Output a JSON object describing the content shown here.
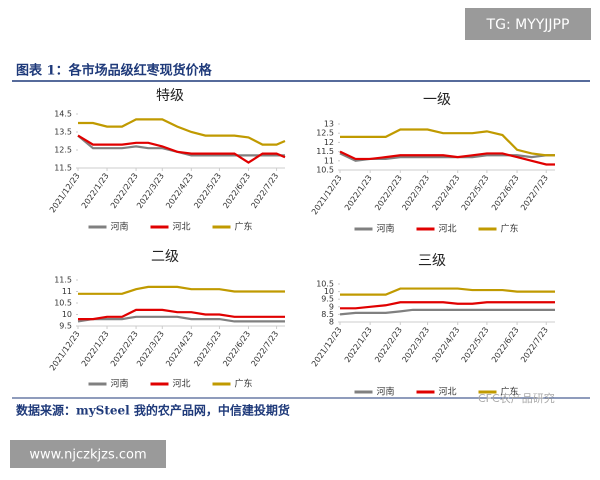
{
  "header": {
    "tag": "TG: MYYJJPP",
    "figure_title": "图表 1：各市场品级红枣现货价格"
  },
  "footer": {
    "source": "数据来源：mySteel 我的农产品网，中信建投期货",
    "watermark": "CFC农产品研究",
    "site": "www.njczkjzs.com"
  },
  "chart_data": [
    {
      "type": "line",
      "title": "特级",
      "x": [
        "2021/12/23",
        "2022/1/8",
        "2022/1/23",
        "2022/2/8",
        "2022/2/23",
        "2022/3/8",
        "2022/3/23",
        "2022/4/8",
        "2022/4/23",
        "2022/5/8",
        "2022/5/23",
        "2022/6/8",
        "2022/6/23",
        "2022/7/8",
        "2022/7/23",
        "2022/8/1"
      ],
      "xlim": [
        "2021/12/23",
        "2022/8/1"
      ],
      "xticks": [
        "2021/12/23",
        "2022/1/23",
        "2022/2/23",
        "2022/3/23",
        "2022/4/23",
        "2022/5/23",
        "2022/6/23",
        "2022/7/23"
      ],
      "ylim": [
        11.5,
        14.5
      ],
      "yticks": [
        11.5,
        12.5,
        13.5,
        14.5
      ],
      "series": [
        {
          "name": "河南",
          "color": "#808080",
          "values": [
            13.3,
            12.6,
            12.6,
            12.6,
            12.7,
            12.6,
            12.6,
            12.4,
            12.2,
            12.2,
            12.2,
            12.2,
            12.2,
            12.2,
            12.2,
            12.2
          ]
        },
        {
          "name": "河北",
          "color": "#e00000",
          "values": [
            13.3,
            12.8,
            12.8,
            12.8,
            12.9,
            12.9,
            12.7,
            12.4,
            12.3,
            12.3,
            12.3,
            12.3,
            11.8,
            12.3,
            12.3,
            12.1
          ]
        },
        {
          "name": "广东",
          "color": "#c09a00",
          "values": [
            14,
            14,
            13.8,
            13.8,
            14.2,
            14.2,
            14.2,
            13.8,
            13.5,
            13.3,
            13.3,
            13.3,
            13.2,
            12.8,
            12.8,
            13
          ]
        }
      ]
    },
    {
      "type": "line",
      "title": "一级",
      "x": [
        "2021/12/23",
        "2022/1/8",
        "2022/1/23",
        "2022/2/8",
        "2022/2/23",
        "2022/3/8",
        "2022/3/23",
        "2022/4/8",
        "2022/4/23",
        "2022/5/8",
        "2022/5/23",
        "2022/6/8",
        "2022/6/23",
        "2022/7/8",
        "2022/7/23",
        "2022/8/1"
      ],
      "xlim": [
        "2021/12/23",
        "2022/8/1"
      ],
      "xticks": [
        "2021/12/23",
        "2022/1/23",
        "2022/2/23",
        "2022/3/23",
        "2022/4/23",
        "2022/5/23",
        "2022/6/23",
        "2022/7/23"
      ],
      "ylim": [
        10.5,
        13
      ],
      "yticks": [
        10.5,
        11,
        11.5,
        12,
        12.5,
        13
      ],
      "series": [
        {
          "name": "河南",
          "color": "#808080",
          "values": [
            11.4,
            11,
            11.1,
            11.1,
            11.2,
            11.2,
            11.2,
            11.2,
            11.2,
            11.2,
            11.3,
            11.3,
            11.3,
            11.2,
            11.3,
            11.3
          ]
        },
        {
          "name": "河北",
          "color": "#e00000",
          "values": [
            11.5,
            11.1,
            11.1,
            11.2,
            11.3,
            11.3,
            11.3,
            11.3,
            11.2,
            11.3,
            11.4,
            11.4,
            11.2,
            11,
            10.8,
            10.8
          ]
        },
        {
          "name": "广东",
          "color": "#c09a00",
          "values": [
            12.3,
            12.3,
            12.3,
            12.3,
            12.7,
            12.7,
            12.7,
            12.5,
            12.5,
            12.5,
            12.6,
            12.4,
            11.6,
            11.4,
            11.3,
            11.3
          ]
        }
      ]
    },
    {
      "type": "line",
      "title": "二级",
      "x": [
        "2021/12/23",
        "2022/1/8",
        "2022/1/23",
        "2022/2/8",
        "2022/2/23",
        "2022/3/8",
        "2022/3/23",
        "2022/4/8",
        "2022/4/23",
        "2022/5/8",
        "2022/5/23",
        "2022/6/8",
        "2022/6/23",
        "2022/7/8",
        "2022/7/23",
        "2022/8/1"
      ],
      "xlim": [
        "2021/12/23",
        "2022/8/1"
      ],
      "xticks": [
        "2021/12/23",
        "2022/1/23",
        "2022/2/23",
        "2022/3/23",
        "2022/4/23",
        "2022/5/23",
        "2022/6/23",
        "2022/7/23"
      ],
      "ylim": [
        9.5,
        11.5
      ],
      "yticks": [
        9.5,
        10,
        10.5,
        11,
        11.5
      ],
      "series": [
        {
          "name": "河南",
          "color": "#808080",
          "values": [
            9.7,
            9.8,
            9.8,
            9.8,
            9.9,
            9.9,
            9.9,
            9.9,
            9.8,
            9.8,
            9.8,
            9.7,
            9.7,
            9.7,
            9.7,
            9.7
          ]
        },
        {
          "name": "河北",
          "color": "#e00000",
          "values": [
            9.8,
            9.8,
            9.9,
            9.9,
            10.2,
            10.2,
            10.2,
            10.1,
            10.1,
            10,
            10,
            9.9,
            9.9,
            9.9,
            9.9,
            9.9
          ]
        },
        {
          "name": "广东",
          "color": "#c09a00",
          "values": [
            10.9,
            10.9,
            10.9,
            10.9,
            11.1,
            11.2,
            11.2,
            11.2,
            11.1,
            11.1,
            11.1,
            11,
            11,
            11,
            11,
            11
          ]
        }
      ]
    },
    {
      "type": "line",
      "title": "三级",
      "x": [
        "2021/12/23",
        "2022/1/8",
        "2022/1/23",
        "2022/2/8",
        "2022/2/23",
        "2022/3/8",
        "2022/3/23",
        "2022/4/8",
        "2022/4/23",
        "2022/5/8",
        "2022/5/23",
        "2022/6/8",
        "2022/6/23",
        "2022/7/8",
        "2022/7/23",
        "2022/8/1"
      ],
      "xlim": [
        "2021/12/23",
        "2022/8/1"
      ],
      "xticks": [
        "2021/12/23",
        "2022/1/23",
        "2022/2/23",
        "2022/3/23",
        "2022/4/23",
        "2022/5/23",
        "2022/6/23",
        "2022/7/23"
      ],
      "ylim": [
        8,
        10.5
      ],
      "yticks": [
        8,
        8.5,
        9,
        9.5,
        10,
        10.5
      ],
      "series": [
        {
          "name": "河南",
          "color": "#808080",
          "values": [
            8.5,
            8.6,
            8.6,
            8.6,
            8.7,
            8.8,
            8.8,
            8.8,
            8.8,
            8.8,
            8.8,
            8.8,
            8.8,
            8.8,
            8.8,
            8.8
          ]
        },
        {
          "name": "河北",
          "color": "#e00000",
          "values": [
            8.9,
            8.9,
            9,
            9.1,
            9.3,
            9.3,
            9.3,
            9.3,
            9.2,
            9.2,
            9.3,
            9.3,
            9.3,
            9.3,
            9.3,
            9.3
          ]
        },
        {
          "name": "广东",
          "color": "#c09a00",
          "values": [
            9.8,
            9.8,
            9.8,
            9.8,
            10.2,
            10.2,
            10.2,
            10.2,
            10.2,
            10.1,
            10.1,
            10.1,
            10,
            10,
            10,
            10
          ]
        }
      ]
    }
  ]
}
